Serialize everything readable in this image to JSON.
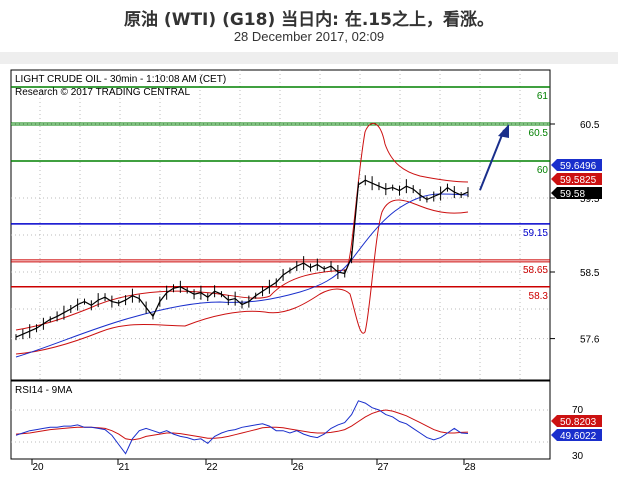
{
  "header": {
    "title": "原油 (WTI) (G18) 当日内: 在.15之上，看涨。",
    "subtitle": "28 December 2017, 02:09"
  },
  "price_panel": {
    "instrument_label": "LIGHT CRUDE OIL - 30min - 1:10:08 AM (CET)",
    "copyright": "Research © 2017 TRADING CENTRAL",
    "axis_ticks": [
      "60.5",
      "59.5",
      "58.5",
      "57.6"
    ],
    "levels": [
      {
        "value": 61,
        "label": "61",
        "color": "#008000",
        "style": "solid"
      },
      {
        "value": 60.5,
        "label": "60.5",
        "color": "#008000",
        "style": "double"
      },
      {
        "value": 60,
        "label": "60",
        "color": "#008000",
        "style": "solid"
      },
      {
        "value": 59.15,
        "label": "59.15",
        "color": "#0000cc",
        "style": "solid"
      },
      {
        "value": 58.65,
        "label": "58.65",
        "color": "#cc0000",
        "style": "double"
      },
      {
        "value": 58.3,
        "label": "58.3",
        "color": "#cc0000",
        "style": "solid"
      }
    ],
    "badges": [
      {
        "text": "59.6496",
        "value": 59.6496,
        "color": "#1a2fcc"
      },
      {
        "text": "59.5825",
        "value": 59.5825,
        "color": "#cc1111"
      },
      {
        "text": "59.58",
        "value": 59.58,
        "color": "#000000"
      }
    ],
    "current_price": 59.58,
    "target_price": 60.5
  },
  "rsi_panel": {
    "label": "RSI14 - 9MA",
    "axis_ticks": [
      "70",
      "30"
    ],
    "badges": [
      {
        "text": "50.8203",
        "value": 50.8203,
        "color": "#cc1111"
      },
      {
        "text": "49.6022",
        "value": 49.6022,
        "color": "#1a2fcc"
      }
    ]
  },
  "x_axis": {
    "labels": [
      "20",
      "21",
      "22",
      "26",
      "27",
      "28"
    ]
  },
  "chart_data": {
    "type": "line",
    "series": [
      {
        "values": [
          57.62,
          57.66,
          57.7,
          57.74,
          57.8,
          57.86,
          57.9,
          57.95,
          58.0,
          58.06,
          58.1,
          58.05,
          58.12,
          58.16,
          58.1,
          58.08,
          58.12,
          58.18,
          58.14,
          58.02,
          57.9,
          58.1,
          58.22,
          58.28,
          58.3,
          58.25,
          58.2,
          58.22,
          58.16,
          58.24,
          58.2,
          58.12,
          58.14,
          58.06,
          58.1,
          58.18,
          58.24,
          58.3,
          58.36,
          58.46,
          58.52,
          58.58,
          58.62,
          58.56,
          58.6,
          58.54,
          58.58,
          58.5,
          58.48,
          58.7,
          59.68,
          59.74,
          59.7,
          59.66,
          59.62,
          59.64,
          59.6,
          59.66,
          59.62,
          59.54,
          59.48,
          59.52,
          59.56,
          59.64,
          59.58,
          59.54,
          59.58
        ]
      },
      {
        "values": [
          48,
          50,
          52,
          53,
          54,
          55,
          55,
          56,
          56,
          57,
          55,
          55,
          54,
          53,
          48,
          40,
          32,
          45,
          52,
          54,
          52,
          50,
          52,
          49,
          47,
          46,
          44,
          45,
          41,
          47,
          50,
          52,
          53,
          55,
          56,
          57,
          58,
          56,
          52,
          52,
          50,
          52,
          49,
          47,
          46,
          49,
          54,
          57,
          59,
          66,
          78,
          76,
          72,
          70,
          66,
          64,
          60,
          58,
          54,
          50,
          46,
          44,
          46,
          50,
          54,
          50,
          49.6
        ]
      },
      {
        "values": [
          49,
          49.5,
          50,
          51,
          52,
          53,
          53.5,
          54,
          54.5,
          55,
          55,
          55,
          54.5,
          54,
          52,
          49,
          45,
          44,
          45,
          47,
          48,
          49,
          50,
          50,
          49.5,
          48.5,
          47.5,
          46.5,
          45.5,
          45.5,
          46,
          47,
          48.5,
          50,
          51.5,
          53,
          54.5,
          55,
          55,
          54.5,
          53.5,
          52.5,
          51.5,
          50.5,
          50,
          50,
          50.5,
          51.5,
          53,
          56,
          60,
          64,
          67,
          69,
          70,
          69,
          67,
          65,
          62,
          59,
          56,
          53,
          51,
          50,
          50,
          50.5,
          50.8
        ]
      }
    ]
  }
}
